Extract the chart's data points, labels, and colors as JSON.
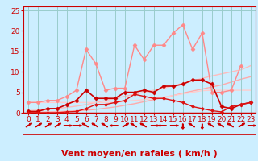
{
  "xlabel": "Vent moyen/en rafales ( km/h )",
  "bg_color": "#cceeff",
  "grid_color": "#99cccc",
  "xlim": [
    -0.5,
    23.5
  ],
  "ylim": [
    0,
    26
  ],
  "yticks": [
    0,
    5,
    10,
    15,
    20,
    25
  ],
  "xticks": [
    0,
    1,
    2,
    3,
    4,
    5,
    6,
    7,
    8,
    9,
    10,
    11,
    12,
    13,
    14,
    15,
    16,
    17,
    18,
    19,
    20,
    21,
    22,
    23
  ],
  "lines": [
    {
      "x": [
        0,
        1,
        2,
        3,
        4,
        5,
        6,
        7,
        8,
        9,
        10,
        11,
        12,
        13,
        14,
        15,
        16,
        17,
        18,
        19,
        20,
        21,
        22
      ],
      "y": [
        2.5,
        2.5,
        3.0,
        3.0,
        4.0,
        5.5,
        15.5,
        12.0,
        5.5,
        6.0,
        6.0,
        16.5,
        13.0,
        16.5,
        16.5,
        19.5,
        21.5,
        15.5,
        19.5,
        5.0,
        5.0,
        5.5,
        11.5
      ],
      "color": "#ff8888",
      "lw": 1.0,
      "marker": "D",
      "ms": 2.5,
      "zorder": 2,
      "alpha": 1.0
    },
    {
      "x": [
        0,
        1,
        2,
        3,
        4,
        5,
        6,
        7,
        8,
        9,
        10,
        11,
        12,
        13,
        14,
        15,
        16,
        17,
        18,
        19,
        20,
        21,
        22,
        23
      ],
      "y": [
        0.3,
        0.3,
        1.0,
        1.0,
        2.0,
        3.0,
        5.5,
        3.5,
        3.5,
        3.5,
        5.0,
        5.0,
        5.5,
        5.0,
        6.5,
        6.5,
        7.0,
        8.0,
        8.0,
        7.0,
        1.5,
        1.0,
        2.0,
        2.5
      ],
      "color": "#cc0000",
      "lw": 1.2,
      "marker": "D",
      "ms": 2.5,
      "zorder": 4,
      "alpha": 1.0
    },
    {
      "x": [
        0,
        1,
        2,
        3,
        4,
        5,
        6,
        7,
        8,
        9,
        10,
        11,
        12,
        13,
        14,
        15,
        16,
        17,
        18,
        19,
        20,
        21,
        22,
        23
      ],
      "y": [
        0.0,
        0.0,
        0.0,
        0.0,
        0.2,
        0.3,
        1.0,
        2.0,
        2.0,
        2.5,
        3.0,
        4.5,
        4.0,
        3.5,
        3.5,
        3.0,
        2.5,
        1.5,
        1.0,
        0.5,
        0.2,
        1.5,
        2.0,
        2.5
      ],
      "color": "#dd1111",
      "lw": 1.0,
      "marker": "D",
      "ms": 2.0,
      "zorder": 4,
      "alpha": 1.0
    },
    {
      "x": [
        0,
        1,
        2,
        3,
        4,
        5,
        6,
        7,
        8,
        9,
        10,
        11,
        12,
        13,
        14,
        15,
        16,
        17,
        18,
        19,
        20,
        21,
        22,
        23
      ],
      "y": [
        0.1,
        0.15,
        0.2,
        0.25,
        0.35,
        0.45,
        0.6,
        0.8,
        1.1,
        1.4,
        1.8,
        2.2,
        2.7,
        3.2,
        3.7,
        4.2,
        4.8,
        5.3,
        5.8,
        6.3,
        6.8,
        7.5,
        8.2,
        8.8
      ],
      "color": "#ffaaaa",
      "lw": 1.0,
      "marker": null,
      "ms": 0,
      "zorder": 1,
      "alpha": 1.0
    },
    {
      "x": [
        0,
        1,
        2,
        3,
        4,
        5,
        6,
        7,
        8,
        9,
        10,
        11,
        12,
        13,
        14,
        15,
        16,
        17,
        18,
        19,
        20,
        21,
        22,
        23
      ],
      "y": [
        0.5,
        0.6,
        0.8,
        1.0,
        1.3,
        1.6,
        2.0,
        2.5,
        3.0,
        3.5,
        4.0,
        4.5,
        5.0,
        5.5,
        6.0,
        6.6,
        7.2,
        7.8,
        8.4,
        9.0,
        9.5,
        10.0,
        10.5,
        11.5
      ],
      "color": "#ffbbbb",
      "lw": 1.0,
      "marker": null,
      "ms": 0,
      "zorder": 1,
      "alpha": 1.0
    },
    {
      "x": [
        0,
        1,
        2,
        3,
        4,
        5,
        6,
        7,
        8,
        9,
        10,
        11,
        12,
        13,
        14,
        15,
        16,
        17,
        18,
        19,
        20,
        21,
        22,
        23
      ],
      "y": [
        2.5,
        2.5,
        2.5,
        2.5,
        2.5,
        2.5,
        2.5,
        2.5,
        2.5,
        2.5,
        2.8,
        3.0,
        3.2,
        3.5,
        3.8,
        4.2,
        4.6,
        5.0,
        5.4,
        5.5,
        5.5,
        5.5,
        5.5,
        5.5
      ],
      "color": "#ffcccc",
      "lw": 1.0,
      "marker": null,
      "ms": 0,
      "zorder": 1,
      "alpha": 1.0
    }
  ],
  "arrows": {
    "x": [
      0,
      1,
      2,
      3,
      4,
      5,
      6,
      7,
      8,
      9,
      10,
      11,
      12,
      13,
      14,
      15,
      16,
      17,
      18,
      19,
      20,
      21,
      22,
      23
    ],
    "angles_deg": [
      45,
      45,
      45,
      45,
      90,
      90,
      315,
      315,
      315,
      270,
      45,
      315,
      315,
      90,
      270,
      90,
      180,
      315,
      180,
      315,
      315,
      315,
      45,
      90
    ]
  },
  "axis_color": "#cc0000",
  "text_color": "#cc0000",
  "xlabel_fontsize": 8,
  "tick_fontsize": 6.5
}
